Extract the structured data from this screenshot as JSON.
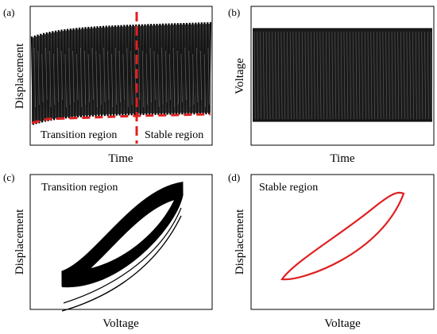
{
  "chart_data": [
    {
      "panel": "(a)",
      "type": "line",
      "xlabel": "Time",
      "ylabel": "Displacement",
      "annotations": [
        "Transition region",
        "Stable region"
      ],
      "series": [
        {
          "values": "dense oscillation, envelope rising from ~0.45 to ~0.83 upper, ~0.10 lower, then steady",
          "color": "#000000"
        }
      ],
      "markers": {
        "color": "#e02020",
        "style": "dashed"
      }
    },
    {
      "panel": "(b)",
      "type": "line",
      "xlabel": "Time",
      "ylabel": "Voltage",
      "series": [
        {
          "values": "constant-amplitude dense oscillation",
          "color": "#000000"
        }
      ]
    },
    {
      "panel": "(c)",
      "type": "line",
      "xlabel": "Voltage",
      "ylabel": "Displacement",
      "annotations": [
        "Transition region"
      ],
      "series": [
        {
          "values": "drifting hysteresis loops",
          "color": "#000000"
        }
      ]
    },
    {
      "panel": "(d)",
      "type": "line",
      "xlabel": "Voltage",
      "ylabel": "Displacement",
      "annotations": [
        "Stable region"
      ],
      "series": [
        {
          "values": "single closed hysteresis loop",
          "color": "#e02020"
        }
      ]
    }
  ]
}
